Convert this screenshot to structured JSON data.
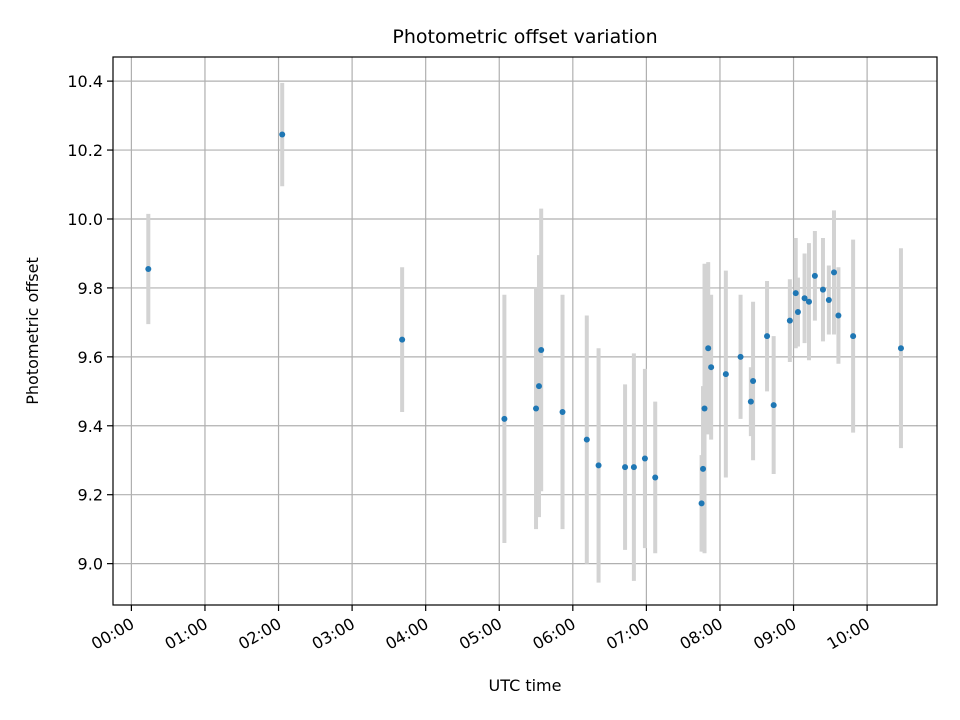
{
  "chart_data": {
    "type": "scatter",
    "title": "Photometric offset variation",
    "xlabel": "UTC time",
    "ylabel": "Photometric offset",
    "x_unit": "hour",
    "xlim": [
      -0.25,
      10.95
    ],
    "ylim": [
      8.88,
      10.47
    ],
    "xticks": [
      0,
      1,
      2,
      3,
      4,
      5,
      6,
      7,
      8,
      9,
      10
    ],
    "xtick_labels": [
      "00:00",
      "01:00",
      "02:00",
      "03:00",
      "04:00",
      "05:00",
      "06:00",
      "07:00",
      "08:00",
      "09:00",
      "10:00"
    ],
    "yticks": [
      9.0,
      9.2,
      9.4,
      9.6,
      9.8,
      10.0,
      10.2,
      10.4
    ],
    "ytick_labels": [
      "9.0",
      "9.2",
      "9.4",
      "9.6",
      "9.8",
      "10.0",
      "10.2",
      "10.4"
    ],
    "grid": true,
    "colors": {
      "point": "#1f77b4",
      "errorbar": "#d3d3d3",
      "grid": "#b0b0b0"
    },
    "points": [
      {
        "x": 0.23,
        "y": 9.855,
        "err": 0.16
      },
      {
        "x": 2.05,
        "y": 10.245,
        "err": 0.15
      },
      {
        "x": 3.68,
        "y": 9.65,
        "err": 0.21
      },
      {
        "x": 5.07,
        "y": 9.42,
        "err": 0.36
      },
      {
        "x": 5.5,
        "y": 9.45,
        "err": 0.35
      },
      {
        "x": 5.54,
        "y": 9.515,
        "err": 0.38
      },
      {
        "x": 5.57,
        "y": 9.62,
        "err": 0.41
      },
      {
        "x": 5.86,
        "y": 9.44,
        "err": 0.34
      },
      {
        "x": 6.19,
        "y": 9.36,
        "err": 0.36
      },
      {
        "x": 6.35,
        "y": 9.285,
        "err": 0.34
      },
      {
        "x": 6.71,
        "y": 9.28,
        "err": 0.24
      },
      {
        "x": 6.83,
        "y": 9.28,
        "err": 0.33
      },
      {
        "x": 6.98,
        "y": 9.305,
        "err": 0.26
      },
      {
        "x": 7.12,
        "y": 9.25,
        "err": 0.22
      },
      {
        "x": 7.75,
        "y": 9.175,
        "err": 0.14
      },
      {
        "x": 7.77,
        "y": 9.275,
        "err": 0.24
      },
      {
        "x": 7.79,
        "y": 9.45,
        "err": 0.42
      },
      {
        "x": 7.84,
        "y": 9.625,
        "err": 0.25
      },
      {
        "x": 7.88,
        "y": 9.57,
        "err": 0.21
      },
      {
        "x": 8.08,
        "y": 9.55,
        "err": 0.3
      },
      {
        "x": 8.28,
        "y": 9.6,
        "err": 0.18
      },
      {
        "x": 8.42,
        "y": 9.47,
        "err": 0.1
      },
      {
        "x": 8.45,
        "y": 9.53,
        "err": 0.23
      },
      {
        "x": 8.64,
        "y": 9.66,
        "err": 0.16
      },
      {
        "x": 8.73,
        "y": 9.46,
        "err": 0.2
      },
      {
        "x": 8.95,
        "y": 9.705,
        "err": 0.12
      },
      {
        "x": 9.03,
        "y": 9.785,
        "err": 0.16
      },
      {
        "x": 9.06,
        "y": 9.73,
        "err": 0.1
      },
      {
        "x": 9.15,
        "y": 9.77,
        "err": 0.13
      },
      {
        "x": 9.21,
        "y": 9.76,
        "err": 0.17
      },
      {
        "x": 9.29,
        "y": 9.835,
        "err": 0.13
      },
      {
        "x": 9.4,
        "y": 9.795,
        "err": 0.15
      },
      {
        "x": 9.48,
        "y": 9.765,
        "err": 0.1
      },
      {
        "x": 9.55,
        "y": 9.845,
        "err": 0.18
      },
      {
        "x": 9.61,
        "y": 9.72,
        "err": 0.14
      },
      {
        "x": 9.81,
        "y": 9.66,
        "err": 0.28
      },
      {
        "x": 10.46,
        "y": 9.625,
        "err": 0.29
      }
    ]
  }
}
